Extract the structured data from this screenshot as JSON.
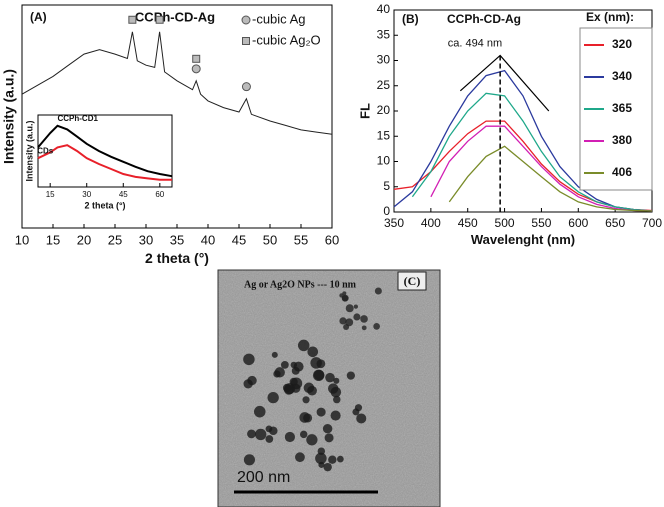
{
  "chart_data": [
    {
      "type": "line",
      "panel_label": "(A)",
      "title": "CCPh-CD-Ag",
      "x_label": "2 theta (°)",
      "y_label": "Intensity (a.u.)",
      "x": [
        10,
        12.5,
        15,
        17.5,
        20,
        22.5,
        25,
        27,
        27.8,
        28.6,
        30,
        31.4,
        32.2,
        33,
        35,
        37.5,
        38.1,
        38.8,
        40,
        42.5,
        45,
        46.2,
        47,
        50,
        52.5,
        55,
        57.5,
        60
      ],
      "values": [
        60,
        64,
        68,
        73,
        78,
        80,
        78,
        76,
        88,
        75,
        73,
        72,
        88,
        70,
        66,
        62,
        66,
        60,
        57,
        54,
        52,
        58,
        51,
        48,
        46,
        44,
        43,
        42
      ],
      "color": "#222222",
      "xlim": [
        10,
        60
      ],
      "xticks": [
        10,
        15,
        20,
        25,
        30,
        35,
        40,
        45,
        50,
        55,
        60
      ],
      "ylim": [
        0,
        100
      ],
      "phases": [
        {
          "label": "-cubic Ag",
          "shape": "circle",
          "peaks": [
            38.1,
            46.2
          ]
        },
        {
          "label": "-cubic Ag₂O",
          "shape": "square",
          "peaks": [
            27.8,
            32.2,
            38.1
          ]
        }
      ],
      "inset": {
        "x_label": "2 theta (°)",
        "y_label": "Intensity (a.u.)",
        "x": [
          10,
          15,
          18,
          22,
          26,
          30,
          35,
          40,
          45,
          50,
          55,
          60,
          65
        ],
        "series": [
          {
            "name": "CCPh-CD1",
            "color": "#000000",
            "values": [
              55,
              75,
              85,
              80,
              70,
              60,
              50,
              42,
              35,
              28,
              22,
              18,
              15
            ]
          },
          {
            "name": "CDs",
            "color": "#e8202a",
            "values": [
              40,
              48,
              55,
              58,
              50,
              40,
              32,
              25,
              18,
              14,
              12,
              10,
              10
            ]
          }
        ],
        "xlim": [
          10,
          65
        ],
        "xticks": [
          15,
          30,
          45,
          60
        ],
        "ylim": [
          0,
          100
        ]
      }
    },
    {
      "type": "line",
      "panel_label": "(B)",
      "title": "CCPh-CD-Ag",
      "x_label": "Wavelenght (nm)",
      "y_label": "FL",
      "legend_title": "Ex (nm):",
      "x": [
        350,
        375,
        400,
        425,
        450,
        475,
        500,
        525,
        550,
        575,
        600,
        625,
        650,
        675,
        700
      ],
      "series": [
        {
          "name": "320",
          "color": "#e8202a",
          "values": [
            4.5,
            5,
            8,
            12,
            15.5,
            18,
            18,
            14,
            9.5,
            6,
            3.5,
            2,
            1,
            0.5,
            0.3
          ]
        },
        {
          "name": "340",
          "color": "#2b3a9e",
          "values": [
            1,
            4,
            10,
            17,
            23,
            27,
            28,
            23,
            15,
            9,
            5,
            2.5,
            1,
            0.5,
            0.2
          ]
        },
        {
          "name": "365",
          "color": "#1fa88a",
          "values": [
            null,
            3,
            8,
            15,
            20,
            23.5,
            23,
            18,
            12,
            7,
            4,
            2,
            1,
            0.5,
            0.2
          ]
        },
        {
          "name": "380",
          "color": "#d21fb4",
          "values": [
            null,
            null,
            3,
            10,
            14,
            17,
            17,
            13,
            9,
            5.5,
            3,
            1.5,
            0.7,
            0.3,
            0.2
          ]
        },
        {
          "name": "406",
          "color": "#7a8c2a",
          "values": [
            null,
            null,
            null,
            2,
            7,
            11,
            13,
            10,
            7,
            4,
            2,
            1,
            0.5,
            0.3,
            0.2
          ]
        }
      ],
      "xlim": [
        350,
        700
      ],
      "xticks": [
        350,
        400,
        450,
        500,
        550,
        600,
        650,
        700
      ],
      "ylim": [
        0,
        40
      ],
      "yticks": [
        0,
        5,
        10,
        15,
        20,
        25,
        30,
        35,
        40
      ],
      "annotation": {
        "text": "ca. 494 nm",
        "x": 494,
        "y": 31
      }
    }
  ],
  "image": {
    "panel_label": "(C)",
    "caption": "Ag or Ag2O NPs --- 10 nm",
    "scale_bar": "200 nm"
  }
}
